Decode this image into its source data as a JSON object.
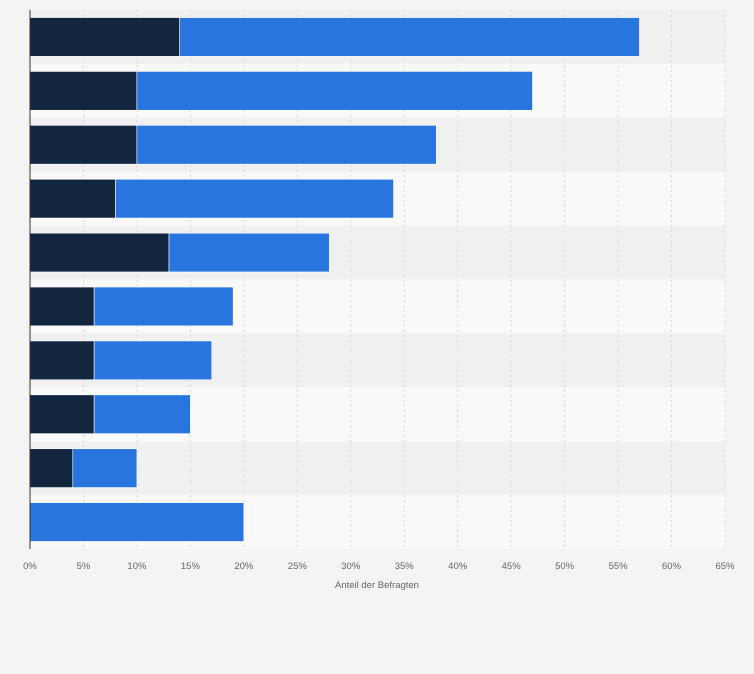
{
  "chart_data": {
    "type": "bar",
    "orientation": "horizontal",
    "stacked": true,
    "categories": [
      "",
      "",
      "",
      "",
      "",
      "",
      "",
      "",
      "",
      ""
    ],
    "series": [
      {
        "values": [
          14,
          10,
          10,
          8,
          13,
          6,
          6,
          6,
          4,
          0
        ]
      },
      {
        "values": [
          43,
          37,
          28,
          26,
          15,
          13,
          11,
          9,
          6,
          20
        ]
      }
    ],
    "xlabel": "Anteil der Befragten",
    "xlim": [
      0,
      65
    ],
    "xticks": [
      0,
      5,
      10,
      15,
      20,
      25,
      30,
      35,
      40,
      45,
      50,
      55,
      60,
      65
    ],
    "tick_format": "{v}%",
    "grid": true,
    "colors": {
      "series_dark": "#12263f",
      "series_blue": "#2876dd",
      "band_light": "#f9f9f9",
      "band_dark": "#f0f0f0",
      "grid": "#d8d8d8",
      "axis": "#333333",
      "tick_text": "#666666"
    }
  }
}
